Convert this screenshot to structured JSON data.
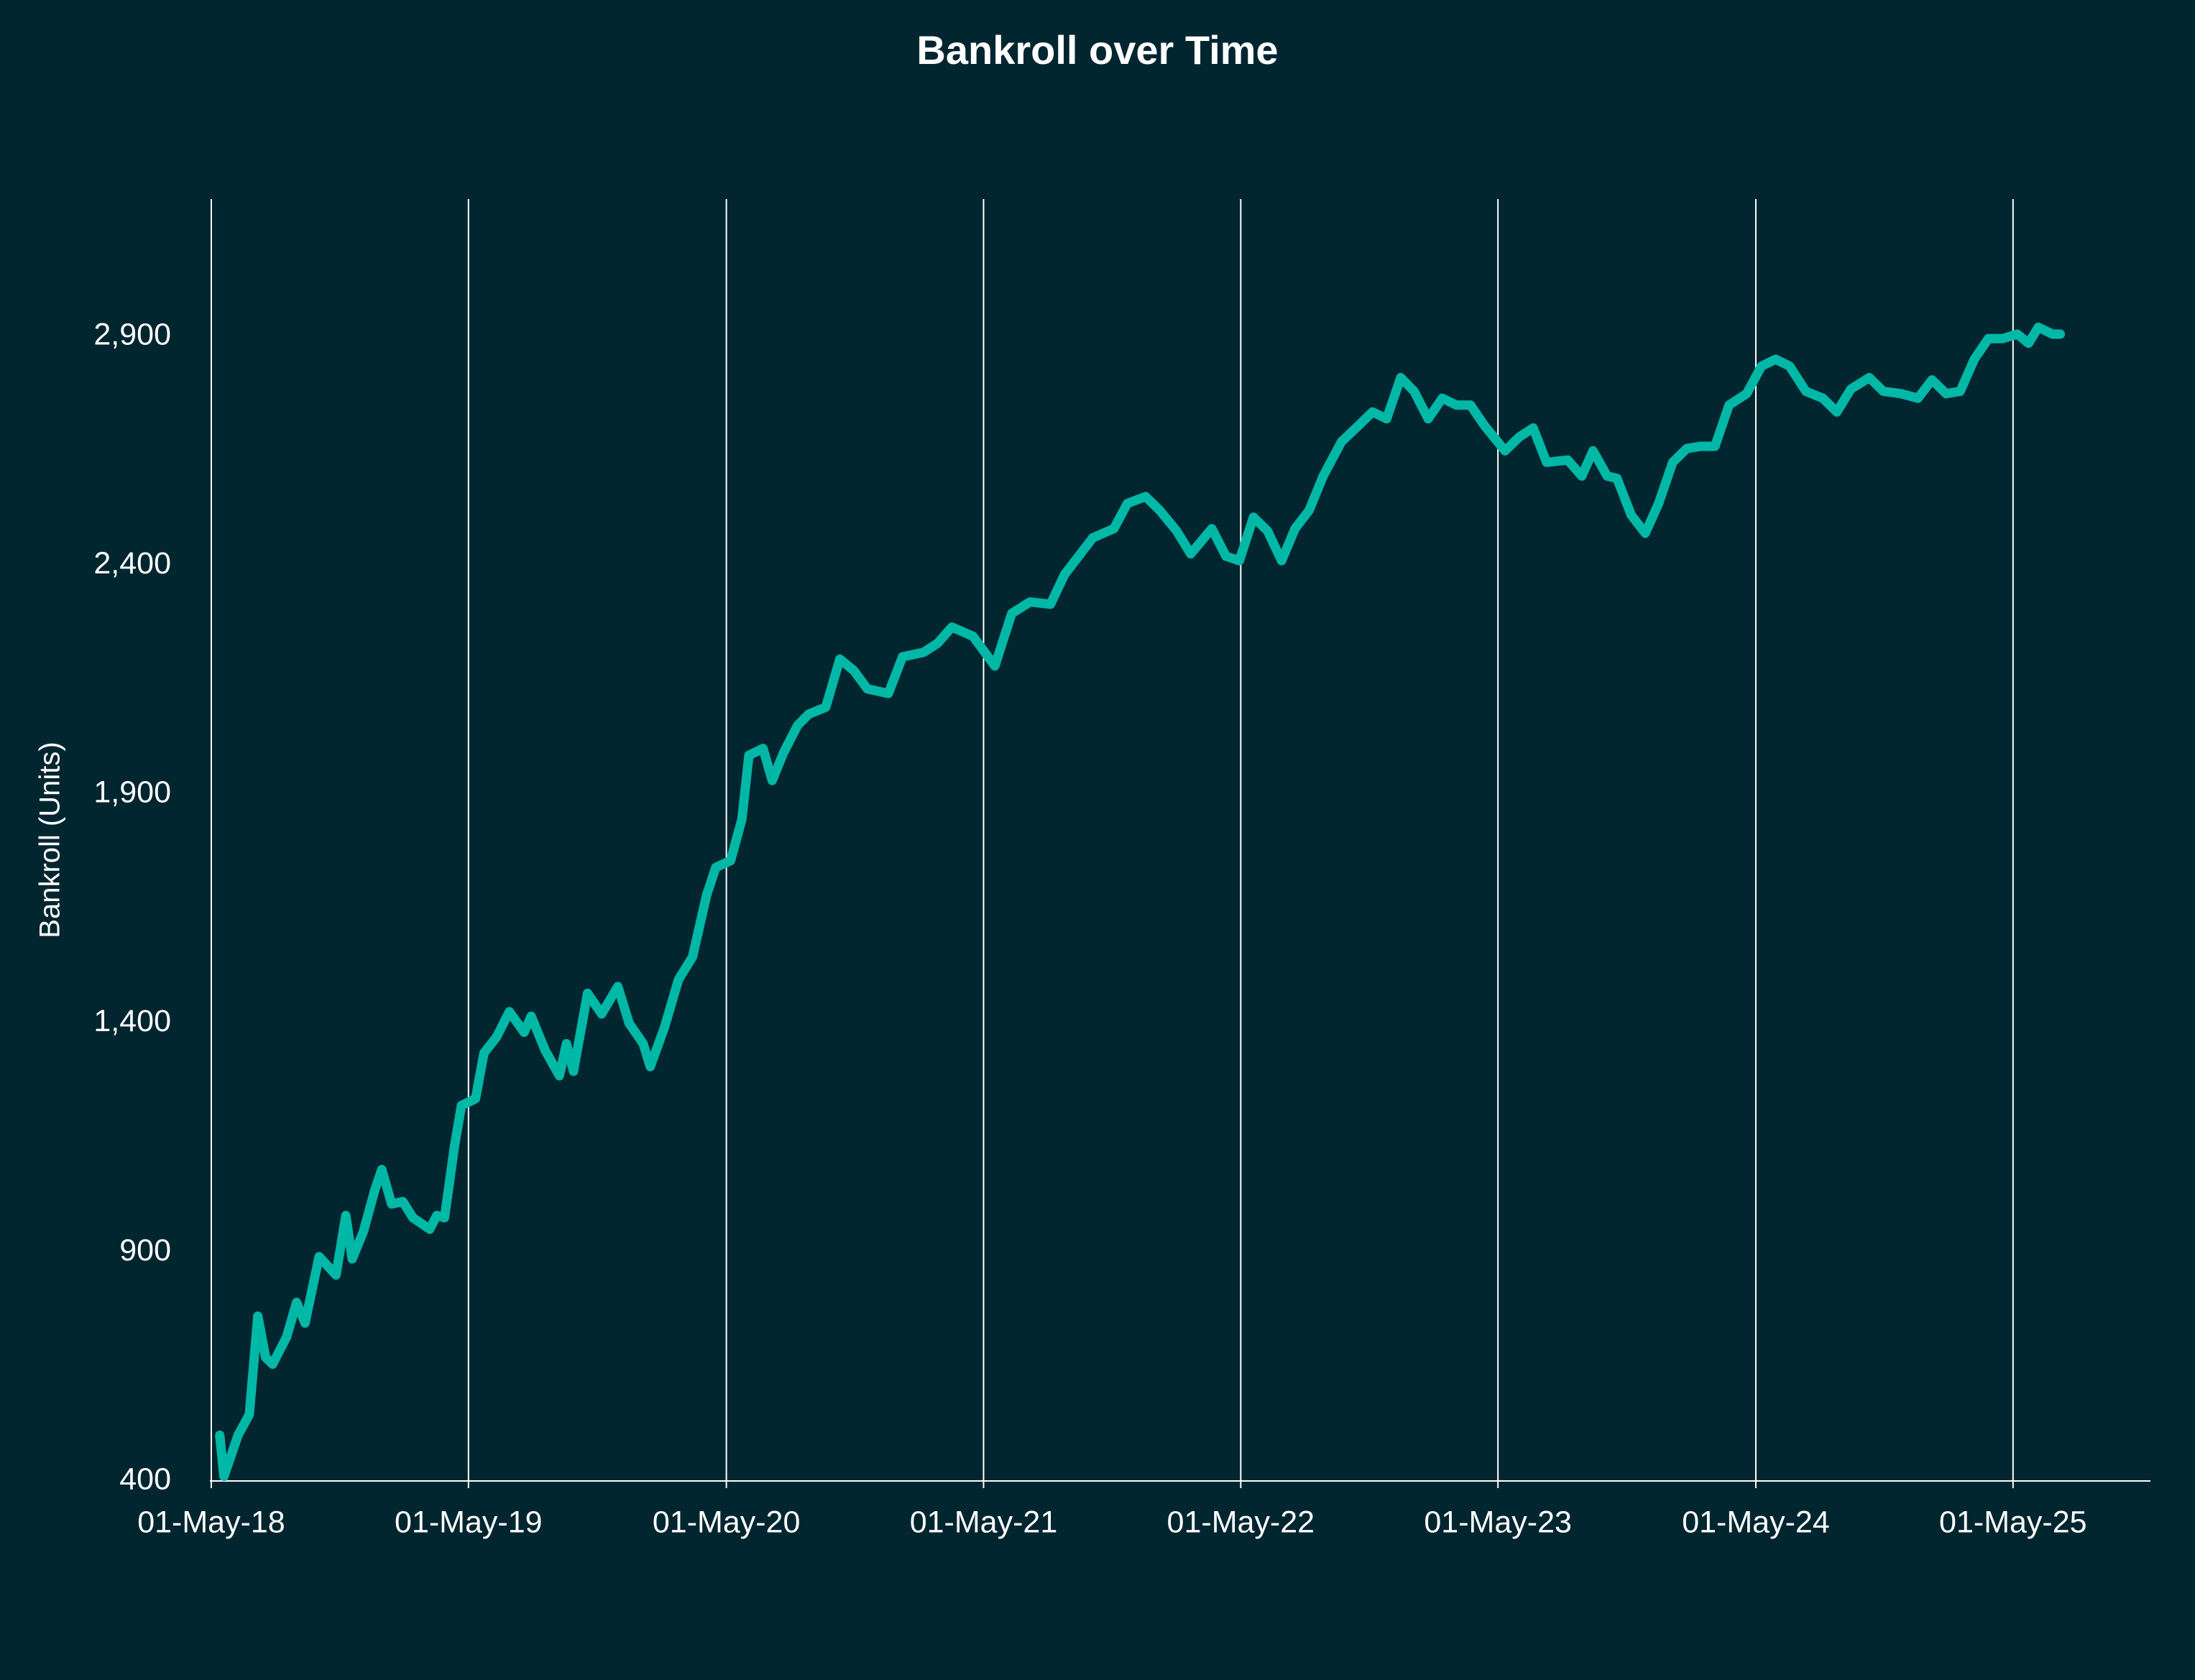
{
  "chart_data": {
    "type": "line",
    "title": "Bankroll over Time",
    "ylabel": "Bankroll (Units)",
    "grid": true,
    "xlim": [
      "2018-04-29",
      "2025-11-12"
    ],
    "xticks": [
      {
        "value": "2018-05-01",
        "label": "01-May-18"
      },
      {
        "value": "2019-05-01",
        "label": "01-May-19"
      },
      {
        "value": "2020-05-01",
        "label": "01-May-20"
      },
      {
        "value": "2021-05-01",
        "label": "01-May-21"
      },
      {
        "value": "2022-05-01",
        "label": "01-May-22"
      },
      {
        "value": "2023-05-01",
        "label": "01-May-23"
      },
      {
        "value": "2024-05-01",
        "label": "01-May-24"
      },
      {
        "value": "2025-05-01",
        "label": "01-May-25"
      }
    ],
    "ylim": [
      400,
      3200
    ],
    "yticks": [
      400,
      900,
      {
        "value": 1400,
        "label": "1,400"
      },
      {
        "value": 1900,
        "label": "1,900"
      },
      {
        "value": 2400,
        "label": "2,400"
      },
      {
        "value": 2900,
        "label": "2,900"
      }
    ],
    "x": [
      "2018-05-13",
      "2018-05-19",
      "2018-06-08",
      "2018-06-24",
      "2018-07-06",
      "2018-07-17",
      "2018-07-27",
      "2018-08-16",
      "2018-08-30",
      "2018-09-11",
      "2018-10-01",
      "2018-10-25",
      "2018-11-08",
      "2018-11-17",
      "2018-12-03",
      "2018-12-19",
      "2018-12-29",
      "2019-01-12",
      "2019-01-28",
      "2019-02-11",
      "2019-03-07",
      "2019-03-17",
      "2019-03-28",
      "2019-04-11",
      "2019-04-21",
      "2019-05-11",
      "2019-05-23",
      "2019-06-10",
      "2019-06-28",
      "2019-07-19",
      "2019-07-29",
      "2019-08-18",
      "2019-09-07",
      "2019-09-17",
      "2019-09-27",
      "2019-10-17",
      "2019-11-06",
      "2019-11-29",
      "2019-12-15",
      "2020-01-04",
      "2020-01-14",
      "2020-02-03",
      "2020-02-23",
      "2020-03-14",
      "2020-04-03",
      "2020-04-16",
      "2020-05-07",
      "2020-05-23",
      "2020-06-02",
      "2020-06-22",
      "2020-07-05",
      "2020-07-21",
      "2020-08-10",
      "2020-08-26",
      "2020-09-19",
      "2020-10-09",
      "2020-10-29",
      "2020-11-17",
      "2020-12-17",
      "2021-01-06",
      "2021-02-05",
      "2021-02-25",
      "2021-03-17",
      "2021-04-16",
      "2021-05-17",
      "2021-06-10",
      "2021-07-06",
      "2021-08-04",
      "2021-08-24",
      "2021-09-13",
      "2021-10-03",
      "2021-11-02",
      "2021-11-21",
      "2021-12-17",
      "2022-01-06",
      "2022-01-30",
      "2022-02-19",
      "2022-03-21",
      "2022-04-10",
      "2022-04-29",
      "2022-05-19",
      "2022-06-08",
      "2022-06-28",
      "2022-07-17",
      "2022-08-06",
      "2022-08-26",
      "2022-09-21",
      "2022-10-15",
      "2022-11-04",
      "2022-11-24",
      "2022-12-14",
      "2023-01-02",
      "2023-01-22",
      "2023-02-11",
      "2023-03-03",
      "2023-03-23",
      "2023-04-12",
      "2023-05-11",
      "2023-05-31",
      "2023-06-20",
      "2023-07-09",
      "2023-08-08",
      "2023-08-28",
      "2023-09-13",
      "2023-10-03",
      "2023-10-17",
      "2023-11-06",
      "2023-11-26",
      "2023-12-15",
      "2024-01-04",
      "2024-01-24",
      "2024-02-13",
      "2024-03-04",
      "2024-03-24",
      "2024-04-18",
      "2024-05-09",
      "2024-05-29",
      "2024-06-18",
      "2024-07-11",
      "2024-08-04",
      "2024-08-24",
      "2024-09-13",
      "2024-10-09",
      "2024-10-29",
      "2024-11-23",
      "2024-12-17",
      "2025-01-06",
      "2025-01-26",
      "2025-02-15",
      "2025-03-07",
      "2025-03-27",
      "2025-04-16",
      "2025-05-07",
      "2025-05-23",
      "2025-06-06",
      "2025-06-26",
      "2025-07-07"
    ],
    "series": [
      {
        "name": "Bankroll",
        "color": "#00b8a6",
        "values": [
          500,
          410,
          500,
          545,
          760,
          670,
          655,
          715,
          790,
          745,
          890,
          850,
          980,
          885,
          945,
          1035,
          1080,
          1005,
          1010,
          975,
          950,
          980,
          975,
          1130,
          1220,
          1235,
          1335,
          1370,
          1425,
          1380,
          1415,
          1340,
          1285,
          1355,
          1295,
          1465,
          1420,
          1480,
          1400,
          1355,
          1305,
          1390,
          1495,
          1545,
          1680,
          1740,
          1755,
          1845,
          1985,
          2000,
          1930,
          1990,
          2050,
          2075,
          2090,
          2195,
          2170,
          2130,
          2120,
          2200,
          2210,
          2230,
          2265,
          2245,
          2180,
          2295,
          2320,
          2315,
          2380,
          2420,
          2460,
          2480,
          2535,
          2550,
          2520,
          2475,
          2425,
          2480,
          2420,
          2410,
          2505,
          2475,
          2410,
          2480,
          2520,
          2595,
          2670,
          2705,
          2735,
          2720,
          2810,
          2780,
          2720,
          2765,
          2750,
          2750,
          2705,
          2650,
          2680,
          2700,
          2625,
          2630,
          2595,
          2650,
          2595,
          2590,
          2510,
          2470,
          2535,
          2625,
          2655,
          2660,
          2660,
          2750,
          2775,
          2835,
          2850,
          2835,
          2780,
          2765,
          2735,
          2785,
          2810,
          2780,
          2775,
          2765,
          2805,
          2775,
          2780,
          2850,
          2895,
          2895,
          2905,
          2885,
          2920,
          2905,
          2905
        ]
      }
    ]
  }
}
